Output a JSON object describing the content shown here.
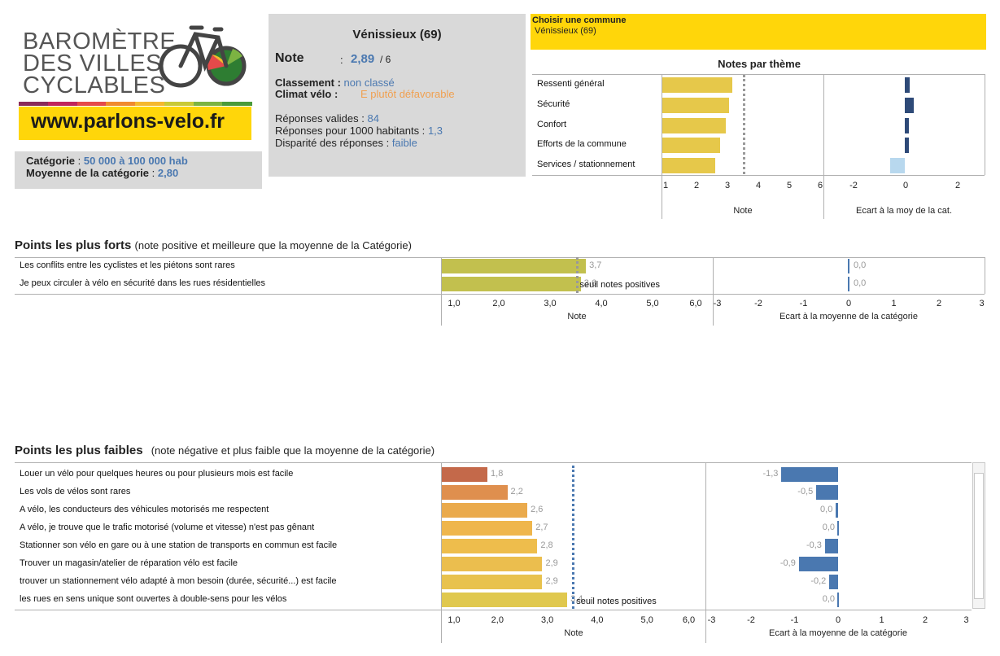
{
  "logo": {
    "lines": [
      "BAROMÈTRE",
      "DES VILLES",
      "CYCLABLES"
    ],
    "url": "www.parlons-velo.fr",
    "stripe_colors": [
      "#8a2a5a",
      "#c0245c",
      "#e54a4a",
      "#f08a2e",
      "#f5b82e",
      "#c9c936",
      "#7cb342",
      "#4a9a3a"
    ]
  },
  "summary": {
    "city": "Vénissieux (69)",
    "note_label": "Note",
    "note_sep": ":",
    "note_value": "2,89",
    "note_max": "/ 6",
    "classement_label": "Classement :",
    "classement_value": "non classé",
    "climat_label": "Climat vélo :",
    "climat_value": "E  plutôt défavorable",
    "reponses_label": "Réponses valides :",
    "reponses_value": "84",
    "pour1000_label": "Réponses pour 1000 habitants :",
    "pour1000_value": "1,3",
    "disparite_label": "Disparité des réponses :",
    "disparite_value": "faible"
  },
  "category": {
    "label": "Catégorie",
    "sep": ":",
    "value": "50 000 à 100 000  hab",
    "moy_label": "Moyenne de la catégorie",
    "moy_sep": ":",
    "moy_value": "2,80"
  },
  "selector": {
    "title": "Choisir une commune",
    "value": "Vénissieux (69)"
  },
  "colors": {
    "yellow": "#ffd60a",
    "bar_yellow": "#e6c84a",
    "bar_olive": "#c2c04e",
    "dark_blue": "#2e4a78",
    "mid_blue": "#4a78b0",
    "light_blue": "#b8d8ee",
    "grey_box": "#d9d9d9"
  },
  "chart_data": [
    {
      "type": "bar",
      "title": "Notes par thème",
      "categories": [
        "Ressenti général",
        "Sécurité",
        "Confort",
        "Efforts de la commune",
        "Services  /  stationnement"
      ],
      "series": [
        {
          "values": [
            3.15,
            3.05,
            2.95,
            2.75,
            2.6
          ]
        }
      ],
      "ecart_values": [
        0.2,
        0.35,
        0.15,
        0.15,
        -0.55
      ],
      "reference_line": 3.5,
      "xlabel": "Note",
      "xlim": [
        1,
        6
      ],
      "x_ticks": [
        "1",
        "2",
        "3",
        "4",
        "5",
        "6"
      ],
      "ecart_xlabel": "Ecart à la moy de la cat.",
      "ecart_lim": [
        -3,
        3
      ],
      "ecart_ticks": [
        "-2",
        "0",
        "2"
      ],
      "ecart_tick_values": [
        -2,
        0,
        2
      ]
    },
    {
      "type": "bar",
      "title": "Points les plus forts",
      "subtitle": "(note positive et meilleure que la moyenne de la Catégorie)",
      "categories": [
        "Les conflits entre les cyclistes et les piétons sont rares",
        "Je peux circuler à vélo en sécurité dans les rues résidentielles"
      ],
      "series": [
        {
          "values": [
            3.7,
            3.6
          ]
        }
      ],
      "value_labels": [
        "3,7",
        "3,6"
      ],
      "ecart_values": [
        0.0,
        0.0
      ],
      "ecart_labels": [
        "0,0",
        "0,0"
      ],
      "reference_line": 3.5,
      "reference_label": "seuil notes positives",
      "xlabel": "Note",
      "xlim": [
        1,
        6
      ],
      "x_ticks": [
        "1,0",
        "2,0",
        "3,0",
        "4,0",
        "5,0",
        "6,0"
      ],
      "ecart_xlabel": "Ecart à la moyenne de la catégorie",
      "ecart_lim": [
        -3,
        3
      ],
      "ecart_ticks": [
        "-3",
        "-2",
        "-1",
        "0",
        "1",
        "2",
        "3"
      ]
    },
    {
      "type": "bar",
      "title": "Points les plus faibles",
      "subtitle": "(note négative et plus faible que la moyenne de la catégorie)",
      "categories": [
        "Louer un vélo pour quelques heures ou pour plusieurs mois est facile",
        "Les vols de vélos  sont rares",
        "A vélo, les conducteurs des véhicules motorisés me respectent",
        "A vélo, je trouve que le trafic motorisé (volume et vitesse) n'est pas gênant",
        "Stationner son vélo en gare ou à une station de transports en commun est facile",
        "Trouver un magasin/atelier de réparation vélo est facile",
        "trouver un stationnement vélo adapté à mon besoin (durée, sécurité...) est facile",
        "les rues en sens unique sont ouvertes à double-sens pour les vélos"
      ],
      "series": [
        {
          "values": [
            1.8,
            2.2,
            2.6,
            2.7,
            2.8,
            2.9,
            2.9,
            3.4
          ]
        }
      ],
      "value_labels": [
        "1,8",
        "2,2",
        "2,6",
        "2,7",
        "2,8",
        "2,9",
        "2,9",
        "3,4"
      ],
      "bar_colors": [
        "#c4694a",
        "#df8f4e",
        "#eaaa4c",
        "#efb64c",
        "#eebd4c",
        "#ebbe4e",
        "#e8c24e",
        "#e0c84e"
      ],
      "ecart_values": [
        -1.3,
        -0.5,
        -0.05,
        0.0,
        -0.3,
        -0.9,
        -0.2,
        0.0
      ],
      "ecart_labels": [
        "-1,3",
        "-0,5",
        "0,0",
        "0,0",
        "-0,3",
        "-0,9",
        "-0,2",
        "0,0"
      ],
      "reference_line": 3.5,
      "reference_label": "seuil notes positives",
      "xlabel": "Note",
      "xlim": [
        1,
        6
      ],
      "x_ticks": [
        "1,0",
        "2,0",
        "3,0",
        "4,0",
        "5,0",
        "6,0"
      ],
      "ecart_xlabel": "Ecart à la moyenne de la catégorie",
      "ecart_lim": [
        -3,
        3
      ],
      "ecart_ticks": [
        "-3",
        "-2",
        "-1",
        "0",
        "1",
        "2",
        "3"
      ]
    }
  ]
}
